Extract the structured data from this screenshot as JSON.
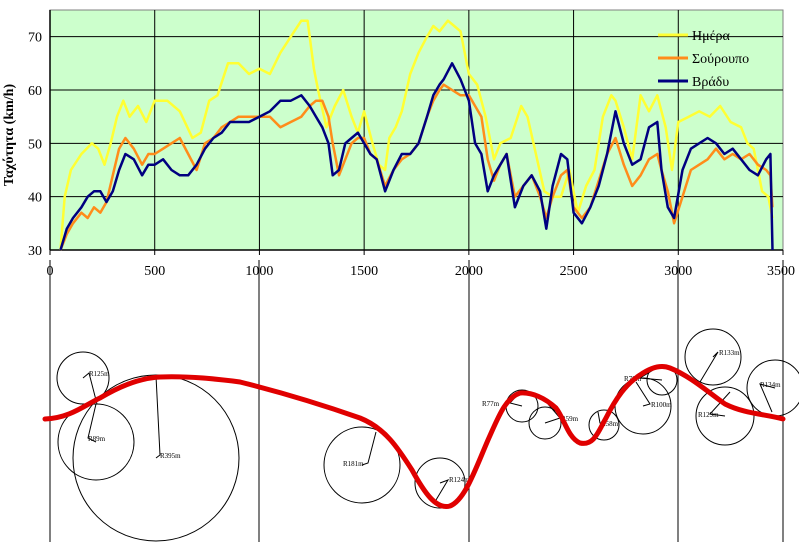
{
  "chart_data": {
    "type": "line",
    "ylabel": "Ταχύτητα (km/h)",
    "xlabel": "",
    "xlim": [
      0,
      3500
    ],
    "ylim": [
      30,
      75
    ],
    "x_ticks": [
      0,
      500,
      1000,
      1500,
      2000,
      2500,
      3000,
      3500
    ],
    "y_ticks": [
      30,
      40,
      50,
      60,
      70
    ],
    "grid": true,
    "legend_position": "top-right",
    "plot_background": "#ccffcc",
    "series": [
      {
        "name": "Ημέρα",
        "color": "#ffff33",
        "x": [
          50,
          70,
          100,
          150,
          200,
          230,
          260,
          290,
          320,
          350,
          380,
          420,
          460,
          500,
          560,
          620,
          680,
          720,
          760,
          800,
          850,
          900,
          950,
          1000,
          1050,
          1100,
          1150,
          1200,
          1230,
          1260,
          1280,
          1320,
          1360,
          1400,
          1440,
          1470,
          1500,
          1540,
          1570,
          1600,
          1620,
          1650,
          1680,
          1720,
          1760,
          1800,
          1830,
          1860,
          1900,
          1930,
          1960,
          2000,
          2040,
          2080,
          2120,
          2150,
          2200,
          2250,
          2280,
          2320,
          2360,
          2400,
          2440,
          2480,
          2520,
          2560,
          2600,
          2640,
          2680,
          2700,
          2740,
          2780,
          2820,
          2860,
          2900,
          2940,
          2970,
          3000,
          3050,
          3100,
          3150,
          3200,
          3250,
          3300,
          3330,
          3360,
          3400,
          3430,
          3450
        ],
        "values": [
          30,
          40,
          45,
          48,
          50,
          49,
          46,
          50,
          55,
          58,
          55,
          57,
          54,
          58,
          58,
          56,
          51,
          52,
          58,
          59,
          65,
          65,
          63,
          64,
          63,
          67,
          70,
          73,
          73,
          64,
          60,
          53,
          57,
          60,
          55,
          52,
          56,
          50,
          46,
          45,
          51,
          53,
          56,
          63,
          67,
          70,
          72,
          71,
          73,
          72,
          71,
          63,
          61,
          55,
          47,
          50,
          51,
          57,
          55,
          48,
          41,
          40,
          40,
          45,
          37,
          42,
          45,
          55,
          59,
          58,
          53,
          47,
          59,
          56,
          59,
          53,
          45,
          54,
          55,
          56,
          55,
          57,
          54,
          53,
          50,
          49,
          41,
          40,
          36
        ]
      },
      {
        "name": "Σούρουπο",
        "color": "#ff8c1a",
        "x": [
          50,
          80,
          110,
          150,
          180,
          210,
          240,
          270,
          300,
          330,
          360,
          400,
          440,
          470,
          500,
          540,
          580,
          620,
          660,
          700,
          740,
          780,
          820,
          860,
          900,
          950,
          1000,
          1050,
          1100,
          1150,
          1200,
          1240,
          1270,
          1300,
          1330,
          1350,
          1380,
          1410,
          1440,
          1470,
          1500,
          1530,
          1560,
          1600,
          1640,
          1680,
          1720,
          1760,
          1800,
          1830,
          1860,
          1880,
          1920,
          1960,
          2000,
          2030,
          2060,
          2090,
          2120,
          2150,
          2180,
          2220,
          2260,
          2300,
          2340,
          2370,
          2400,
          2440,
          2470,
          2500,
          2540,
          2580,
          2620,
          2660,
          2700,
          2740,
          2780,
          2820,
          2860,
          2900,
          2920,
          2950,
          2980,
          3020,
          3060,
          3100,
          3140,
          3180,
          3220,
          3260,
          3300,
          3340,
          3380,
          3420,
          3440,
          3450
        ],
        "values": [
          30,
          33,
          35,
          37,
          36,
          38,
          37,
          39,
          44,
          49,
          51,
          49,
          46,
          48,
          48,
          49,
          50,
          51,
          48,
          45,
          50,
          51,
          53,
          54,
          55,
          55,
          55,
          55,
          53,
          54,
          55,
          57,
          58,
          58,
          55,
          50,
          44,
          47,
          50,
          51,
          51,
          48,
          47,
          42,
          45,
          47,
          48,
          50,
          55,
          58,
          60,
          61,
          60,
          59,
          59,
          57,
          55,
          47,
          43,
          46,
          48,
          40,
          42,
          44,
          40,
          36,
          40,
          44,
          45,
          38,
          36,
          38,
          43,
          48,
          51,
          46,
          42,
          44,
          47,
          48,
          45,
          41,
          35,
          40,
          45,
          46,
          47,
          49,
          47,
          48,
          47,
          48,
          46,
          45,
          44,
          38
        ]
      },
      {
        "name": "Βράδυ",
        "color": "#000080",
        "x": [
          50,
          80,
          110,
          150,
          180,
          210,
          240,
          270,
          300,
          330,
          360,
          400,
          440,
          470,
          500,
          540,
          580,
          620,
          660,
          700,
          740,
          780,
          820,
          860,
          900,
          950,
          1000,
          1050,
          1100,
          1150,
          1200,
          1240,
          1270,
          1300,
          1330,
          1350,
          1380,
          1410,
          1440,
          1470,
          1500,
          1530,
          1560,
          1600,
          1640,
          1680,
          1720,
          1760,
          1800,
          1830,
          1860,
          1880,
          1920,
          1960,
          2000,
          2030,
          2060,
          2090,
          2120,
          2150,
          2180,
          2220,
          2260,
          2300,
          2340,
          2370,
          2400,
          2440,
          2470,
          2500,
          2540,
          2580,
          2620,
          2660,
          2700,
          2740,
          2780,
          2820,
          2860,
          2900,
          2920,
          2950,
          2980,
          3020,
          3060,
          3100,
          3140,
          3180,
          3220,
          3260,
          3300,
          3340,
          3380,
          3420,
          3440,
          3450
        ],
        "values": [
          30,
          34,
          36,
          38,
          40,
          41,
          41,
          39,
          41,
          45,
          48,
          47,
          44,
          46,
          46,
          47,
          45,
          44,
          44,
          46,
          49,
          51,
          52,
          54,
          54,
          54,
          55,
          56,
          58,
          58,
          59,
          57,
          55,
          53,
          50,
          44,
          45,
          50,
          51,
          52,
          50,
          48,
          47,
          41,
          45,
          48,
          48,
          50,
          55,
          59,
          61,
          62,
          65,
          62,
          58,
          50,
          48,
          41,
          44,
          46,
          48,
          38,
          42,
          44,
          41,
          34,
          42,
          48,
          47,
          37,
          35,
          38,
          42,
          48,
          56,
          50,
          46,
          47,
          53,
          54,
          45,
          38,
          36,
          45,
          49,
          50,
          51,
          50,
          48,
          49,
          47,
          45,
          44,
          47,
          48,
          30
        ]
      }
    ]
  },
  "road_map": {
    "curve_labels": [
      {
        "text": "R125m"
      },
      {
        "text": "R89m"
      },
      {
        "text": "R395m"
      },
      {
        "text": "R181m"
      },
      {
        "text": "R124m"
      },
      {
        "text": "R77m"
      },
      {
        "text": "R59m"
      },
      {
        "text": "R58m"
      },
      {
        "text": "R70m"
      },
      {
        "text": "R100m"
      },
      {
        "text": "R133m"
      },
      {
        "text": "R129m"
      },
      {
        "text": "R134m"
      }
    ]
  }
}
